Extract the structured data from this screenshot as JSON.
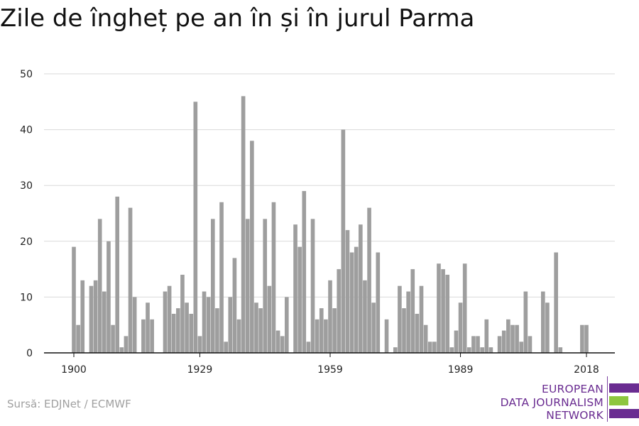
{
  "title": "Zile de îngheț pe an în și în jurul Parma",
  "source": "Sursă: EDJNet / ECMWF",
  "logo": {
    "lines": [
      "EUROPEAN",
      "DATA JOURNALISM",
      "NETWORK"
    ],
    "color_purple": "#6a2c91",
    "color_green": "#8dc63f"
  },
  "chart_data": {
    "type": "bar",
    "bar_color": "#9e9e9e",
    "ylim": [
      0,
      50
    ],
    "y_ticks": [
      0,
      10,
      20,
      30,
      40,
      50
    ],
    "x_ticks": [
      1900,
      1929,
      1959,
      1989,
      2018
    ],
    "grid": true,
    "x": [
      1900,
      1901,
      1902,
      1903,
      1904,
      1905,
      1906,
      1907,
      1908,
      1909,
      1910,
      1911,
      1912,
      1913,
      1914,
      1915,
      1916,
      1917,
      1918,
      1919,
      1920,
      1921,
      1922,
      1923,
      1924,
      1925,
      1926,
      1927,
      1928,
      1929,
      1930,
      1931,
      1932,
      1933,
      1934,
      1935,
      1936,
      1937,
      1938,
      1939,
      1940,
      1941,
      1942,
      1943,
      1944,
      1945,
      1946,
      1947,
      1948,
      1949,
      1950,
      1951,
      1952,
      1953,
      1954,
      1955,
      1956,
      1957,
      1958,
      1959,
      1960,
      1961,
      1962,
      1963,
      1964,
      1965,
      1966,
      1967,
      1968,
      1969,
      1970,
      1971,
      1972,
      1973,
      1974,
      1975,
      1976,
      1977,
      1978,
      1979,
      1980,
      1981,
      1982,
      1983,
      1984,
      1985,
      1986,
      1987,
      1988,
      1989,
      1990,
      1991,
      1992,
      1993,
      1994,
      1995,
      1996,
      1997,
      1998,
      1999,
      2000,
      2001,
      2002,
      2003,
      2004,
      2005,
      2006,
      2007,
      2008,
      2009,
      2010,
      2011,
      2012,
      2013,
      2014,
      2015,
      2016,
      2017,
      2018
    ],
    "values": [
      19,
      5,
      13,
      0,
      12,
      13,
      24,
      11,
      20,
      5,
      28,
      1,
      3,
      26,
      10,
      0,
      6,
      9,
      6,
      0,
      0,
      11,
      12,
      7,
      8,
      14,
      9,
      7,
      45,
      3,
      11,
      10,
      24,
      8,
      27,
      2,
      10,
      17,
      6,
      46,
      24,
      38,
      9,
      8,
      24,
      12,
      27,
      4,
      3,
      10,
      0,
      23,
      19,
      29,
      2,
      24,
      6,
      8,
      6,
      13,
      8,
      15,
      40,
      22,
      18,
      19,
      23,
      13,
      26,
      9,
      18,
      0,
      6,
      0,
      1,
      12,
      8,
      11,
      15,
      7,
      12,
      5,
      2,
      2,
      16,
      15,
      14,
      1,
      4,
      9,
      16,
      1,
      3,
      3,
      1,
      6,
      1,
      0,
      3,
      4,
      6,
      5,
      5,
      2,
      11,
      3,
      0,
      0,
      11,
      9,
      0,
      18,
      1,
      0,
      0,
      0,
      0,
      5,
      5
    ]
  }
}
